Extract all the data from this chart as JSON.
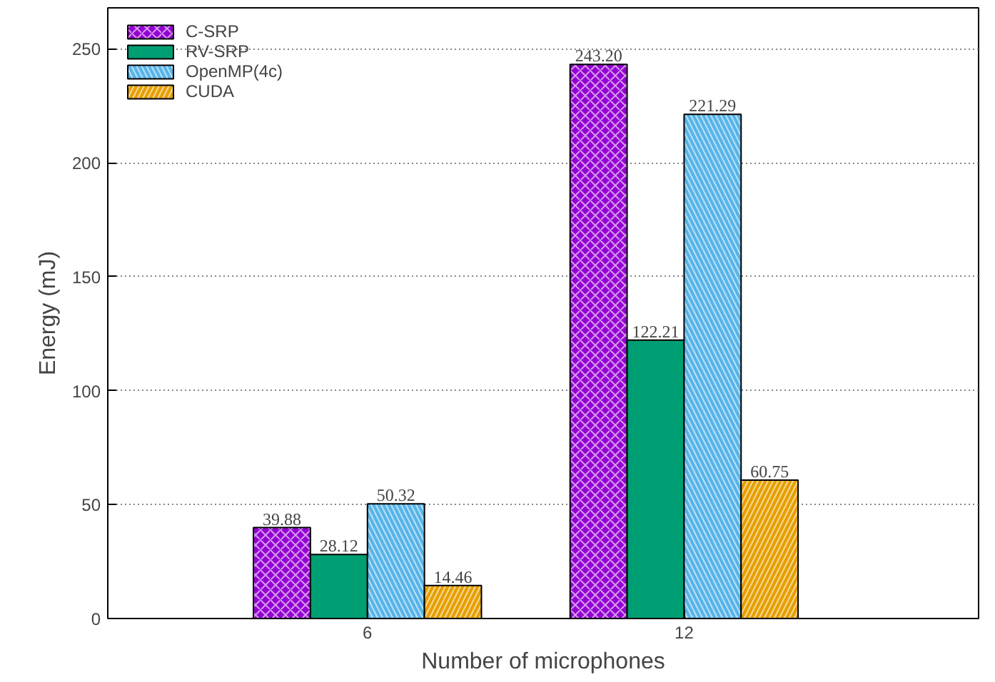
{
  "chart_data": {
    "type": "bar",
    "xlabel": "Number of microphones",
    "ylabel": "Energy (mJ)",
    "categories": [
      "6",
      "12"
    ],
    "series": [
      {
        "name": "C-SRP",
        "color": "#9400d3",
        "values": [
          39.88,
          243.2
        ],
        "value_labels": [
          "39.88",
          "243.20"
        ]
      },
      {
        "name": "RV-SRP",
        "color": "#009e73",
        "values": [
          28.12,
          122.21
        ],
        "value_labels": [
          "28.12",
          "122.21"
        ]
      },
      {
        "name": "OpenMP(4c)",
        "color": "#56b4e9",
        "values": [
          50.32,
          221.29
        ],
        "value_labels": [
          "50.32",
          "221.29"
        ]
      },
      {
        "name": "CUDA",
        "color": "#e69f00",
        "values": [
          14.46,
          60.75
        ],
        "value_labels": [
          "14.46",
          "60.75"
        ]
      }
    ],
    "ylim": [
      0,
      268
    ],
    "yticks": [
      0,
      50,
      100,
      150,
      200,
      250
    ],
    "grid": "y",
    "legend": "top left"
  }
}
